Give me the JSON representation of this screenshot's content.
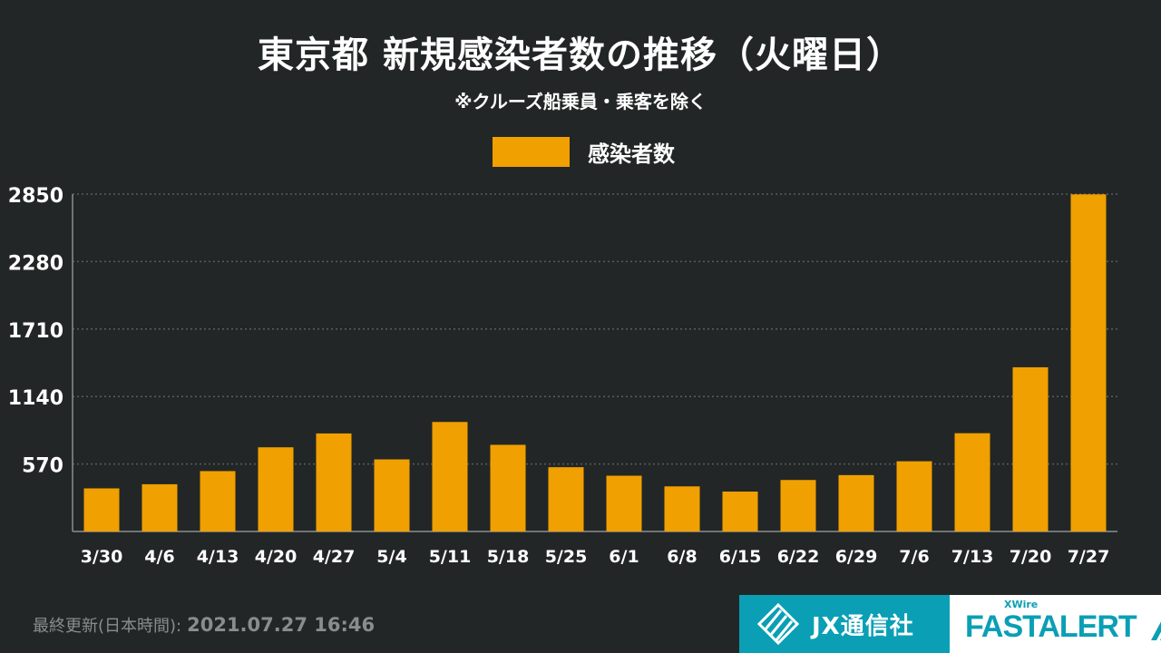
{
  "title": "東京都 新規感染者数の推移（火曜日）",
  "subtitle": "※クルーズ船乗員・乗客を除く",
  "colors": {
    "background": "#232626",
    "bar": "#f0a000",
    "grid": "#5a5d5d",
    "text": "#ffffff",
    "brand": "#0a9fb5"
  },
  "chart_data": {
    "type": "bar",
    "legend": [
      "感染者数"
    ],
    "legend_position": "top-center",
    "grid": true,
    "categories": [
      "3/30",
      "4/6",
      "4/13",
      "4/20",
      "4/27",
      "5/4",
      "5/11",
      "5/18",
      "5/25",
      "6/1",
      "6/8",
      "6/15",
      "6/22",
      "6/29",
      "7/6",
      "7/13",
      "7/20",
      "7/27"
    ],
    "series": [
      {
        "name": "感染者数",
        "values": [
          364,
          399,
          510,
          711,
          828,
          609,
          925,
          732,
          543,
          471,
          381,
          337,
          435,
          476,
          593,
          830,
          1387,
          2848
        ]
      }
    ],
    "yticks": [
      570,
      1140,
      1710,
      2280,
      2850
    ],
    "ylim": [
      0,
      2850
    ]
  },
  "footer": {
    "updated_label": "最終更新(日本時間):",
    "updated_value": "2021.07.27 16:46"
  },
  "logos": {
    "jx": "JX通信社",
    "fastalert_sub": "XWire",
    "fastalert": "FASTALERT"
  }
}
